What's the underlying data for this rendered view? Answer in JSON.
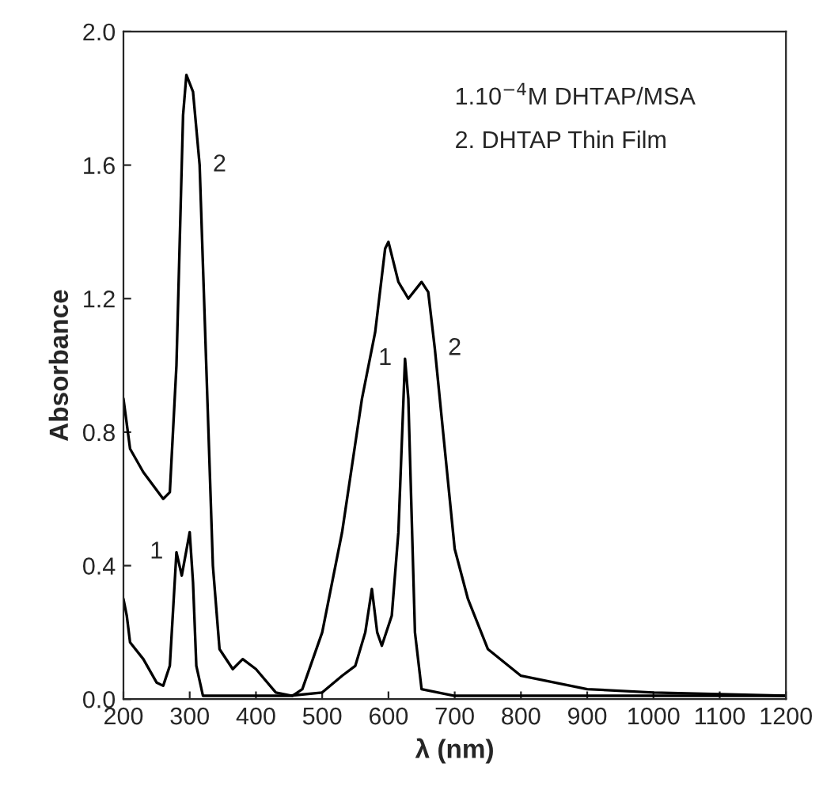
{
  "chart_data": {
    "type": "line",
    "xlabel": "λ (nm)",
    "ylabel": "Absorbance",
    "xlim": [
      200,
      1200
    ],
    "ylim": [
      0,
      2.0
    ],
    "xticks": [
      200,
      300,
      400,
      500,
      600,
      700,
      800,
      900,
      1000,
      1100,
      1200
    ],
    "yticks": [
      {
        "value": 0,
        "label": "0.0"
      },
      {
        "value": 0.4,
        "label": "0.4"
      },
      {
        "value": 0.8,
        "label": "0.8"
      },
      {
        "value": 1.2,
        "label": "1.2"
      },
      {
        "value": 1.6,
        "label": "1.6"
      },
      {
        "value": 2.0,
        "label": "2.0"
      }
    ],
    "grid": false,
    "legend": false,
    "marker": "none",
    "line_style": "solid",
    "series": [
      {
        "color": "#000000",
        "x": [
          200,
          205,
          210,
          230,
          250,
          260,
          270,
          280,
          288,
          300,
          305,
          310,
          320,
          350,
          450,
          500,
          530,
          550,
          565,
          575,
          583,
          590,
          605,
          615,
          625,
          630,
          640,
          650,
          700,
          1200
        ],
        "values": [
          0.3,
          0.25,
          0.17,
          0.12,
          0.05,
          0.04,
          0.1,
          0.44,
          0.37,
          0.5,
          0.35,
          0.1,
          0.01,
          0.01,
          0.01,
          0.02,
          0.07,
          0.1,
          0.2,
          0.33,
          0.2,
          0.16,
          0.25,
          0.5,
          1.02,
          0.9,
          0.2,
          0.03,
          0.01,
          0.01
        ]
      },
      {
        "color": "#000000",
        "x": [
          200,
          210,
          230,
          260,
          270,
          280,
          290,
          295,
          305,
          315,
          325,
          335,
          345,
          365,
          380,
          400,
          430,
          455,
          470,
          500,
          530,
          560,
          580,
          595,
          600,
          615,
          630,
          650,
          660,
          670,
          680,
          700,
          720,
          750,
          800,
          900,
          1000,
          1200
        ],
        "values": [
          0.9,
          0.75,
          0.68,
          0.6,
          0.62,
          1.0,
          1.75,
          1.87,
          1.82,
          1.6,
          1.0,
          0.4,
          0.15,
          0.09,
          0.12,
          0.09,
          0.02,
          0.01,
          0.03,
          0.2,
          0.5,
          0.9,
          1.1,
          1.35,
          1.37,
          1.25,
          1.2,
          1.25,
          1.22,
          1.05,
          0.85,
          0.45,
          0.3,
          0.15,
          0.07,
          0.03,
          0.02,
          0.01
        ]
      }
    ],
    "annotations": [
      {
        "text": "1",
        "x": 280,
        "y": 0.44
      },
      {
        "text": "2",
        "x": 315,
        "y": 1.6
      },
      {
        "text": "1",
        "x": 625,
        "y": 1.02
      },
      {
        "text": "2",
        "x": 670,
        "y": 1.05
      },
      "1.10$^{−4}$M DHTAP/MSA",
      "2. DHTAP Thin Film"
    ]
  }
}
